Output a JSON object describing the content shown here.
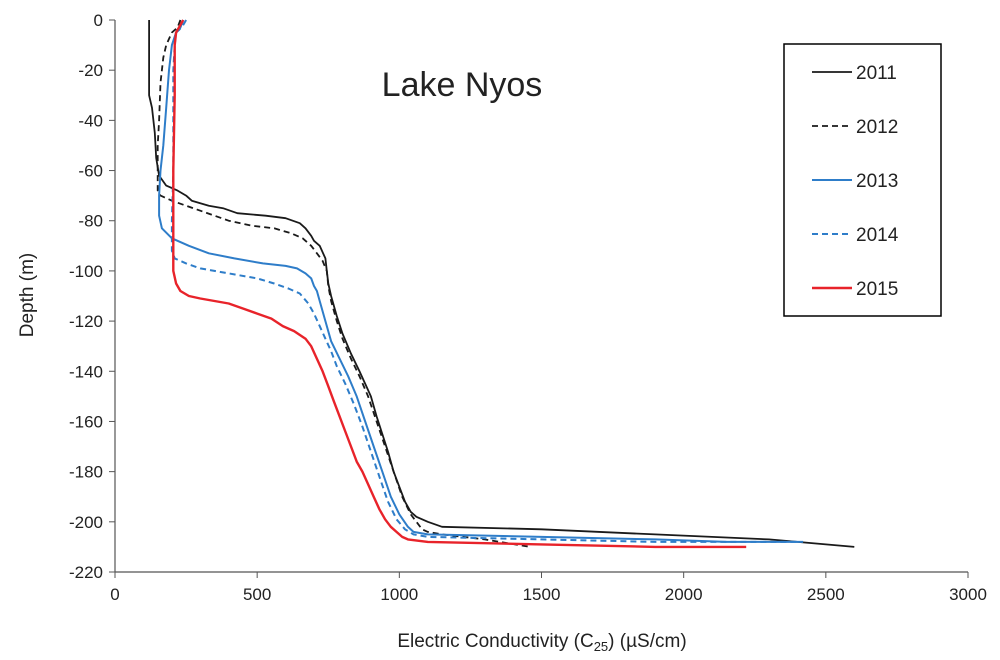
{
  "chart_data": {
    "type": "line",
    "title": "Lake Nyos",
    "xlabel_pre": "Electric Conductivity (C",
    "xlabel_sub": "25",
    "xlabel_post": ") (µS/cm)",
    "ylabel": "Depth (m)",
    "xlim": [
      0,
      3000
    ],
    "ylim": [
      -220,
      0
    ],
    "xticks": [
      0,
      500,
      1000,
      1500,
      2000,
      2500,
      3000
    ],
    "yticks": [
      0,
      -20,
      -40,
      -60,
      -80,
      -100,
      -120,
      -140,
      -160,
      -180,
      -200,
      -220
    ],
    "xtick_labels": [
      "0",
      "500",
      "1000",
      "1500",
      "2000",
      "2500",
      "3000"
    ],
    "ytick_labels": [
      "0",
      "-20",
      "-40",
      "-60",
      "-80",
      "-100",
      "-120",
      "-140",
      "-160",
      "-180",
      "-200",
      "-220"
    ],
    "grid": false,
    "legend": "top-right",
    "series": [
      {
        "name": "2011",
        "color": "#1a1a1a",
        "dash": "solid",
        "width": 1.8,
        "points": [
          [
            120,
            0
          ],
          [
            120,
            -30
          ],
          [
            130,
            -35
          ],
          [
            140,
            -45
          ],
          [
            145,
            -55
          ],
          [
            155,
            -62
          ],
          [
            180,
            -66
          ],
          [
            220,
            -68
          ],
          [
            250,
            -70
          ],
          [
            270,
            -72
          ],
          [
            330,
            -74
          ],
          [
            380,
            -75
          ],
          [
            430,
            -77
          ],
          [
            530,
            -78
          ],
          [
            600,
            -79
          ],
          [
            650,
            -81
          ],
          [
            670,
            -83
          ],
          [
            690,
            -86
          ],
          [
            700,
            -88
          ],
          [
            720,
            -90
          ],
          [
            740,
            -95
          ],
          [
            745,
            -100
          ],
          [
            750,
            -105
          ],
          [
            760,
            -110
          ],
          [
            780,
            -118
          ],
          [
            800,
            -125
          ],
          [
            830,
            -133
          ],
          [
            860,
            -140
          ],
          [
            880,
            -145
          ],
          [
            900,
            -150
          ],
          [
            920,
            -158
          ],
          [
            940,
            -165
          ],
          [
            960,
            -172
          ],
          [
            980,
            -180
          ],
          [
            1000,
            -186
          ],
          [
            1020,
            -192
          ],
          [
            1040,
            -196
          ],
          [
            1060,
            -198
          ],
          [
            1080,
            -199
          ],
          [
            1100,
            -200
          ],
          [
            1150,
            -202
          ],
          [
            1500,
            -203
          ],
          [
            1900,
            -205
          ],
          [
            2300,
            -207
          ],
          [
            2600,
            -210
          ]
        ]
      },
      {
        "name": "2012",
        "color": "#1a1a1a",
        "dash": "6,4",
        "width": 1.8,
        "points": [
          [
            230,
            0
          ],
          [
            220,
            -3
          ],
          [
            200,
            -5
          ],
          [
            180,
            -10
          ],
          [
            170,
            -15
          ],
          [
            160,
            -25
          ],
          [
            155,
            -40
          ],
          [
            150,
            -50
          ],
          [
            150,
            -62
          ],
          [
            150,
            -68
          ],
          [
            160,
            -70
          ],
          [
            200,
            -72
          ],
          [
            250,
            -74
          ],
          [
            300,
            -76
          ],
          [
            350,
            -78
          ],
          [
            400,
            -80
          ],
          [
            480,
            -82
          ],
          [
            560,
            -83
          ],
          [
            620,
            -85
          ],
          [
            660,
            -87
          ],
          [
            690,
            -90
          ],
          [
            710,
            -93
          ],
          [
            730,
            -96
          ],
          [
            745,
            -100
          ],
          [
            750,
            -106
          ],
          [
            760,
            -112
          ],
          [
            780,
            -120
          ],
          [
            800,
            -127
          ],
          [
            830,
            -135
          ],
          [
            860,
            -142
          ],
          [
            890,
            -150
          ],
          [
            920,
            -160
          ],
          [
            950,
            -170
          ],
          [
            980,
            -180
          ],
          [
            1010,
            -190
          ],
          [
            1040,
            -197
          ],
          [
            1060,
            -200
          ],
          [
            1080,
            -203
          ],
          [
            1100,
            -204
          ],
          [
            1150,
            -205
          ],
          [
            1300,
            -207
          ],
          [
            1460,
            -210
          ]
        ]
      },
      {
        "name": "2013",
        "color": "#2e7dc9",
        "dash": "solid",
        "width": 2.0,
        "points": [
          [
            240,
            0
          ],
          [
            230,
            -3
          ],
          [
            215,
            -5
          ],
          [
            200,
            -10
          ],
          [
            190,
            -20
          ],
          [
            180,
            -35
          ],
          [
            170,
            -50
          ],
          [
            160,
            -60
          ],
          [
            155,
            -70
          ],
          [
            155,
            -78
          ],
          [
            165,
            -83
          ],
          [
            200,
            -87
          ],
          [
            260,
            -90
          ],
          [
            330,
            -93
          ],
          [
            420,
            -95
          ],
          [
            520,
            -97
          ],
          [
            600,
            -98
          ],
          [
            640,
            -99
          ],
          [
            670,
            -101
          ],
          [
            690,
            -103
          ],
          [
            700,
            -106
          ],
          [
            710,
            -108
          ],
          [
            720,
            -112
          ],
          [
            740,
            -120
          ],
          [
            760,
            -128
          ],
          [
            790,
            -135
          ],
          [
            820,
            -142
          ],
          [
            850,
            -150
          ],
          [
            880,
            -160
          ],
          [
            910,
            -170
          ],
          [
            940,
            -180
          ],
          [
            970,
            -190
          ],
          [
            1000,
            -197
          ],
          [
            1030,
            -202
          ],
          [
            1050,
            -204
          ],
          [
            1100,
            -205
          ],
          [
            1500,
            -206
          ],
          [
            1900,
            -207
          ],
          [
            2150,
            -208
          ],
          [
            2420,
            -208
          ]
        ]
      },
      {
        "name": "2014",
        "color": "#2e7dc9",
        "dash": "6,4",
        "width": 2.0,
        "points": [
          [
            250,
            0
          ],
          [
            240,
            -2
          ],
          [
            225,
            -4
          ],
          [
            215,
            -5
          ],
          [
            210,
            -10
          ],
          [
            205,
            -20
          ],
          [
            205,
            -40
          ],
          [
            205,
            -60
          ],
          [
            200,
            -80
          ],
          [
            200,
            -92
          ],
          [
            210,
            -95
          ],
          [
            250,
            -97
          ],
          [
            300,
            -99
          ],
          [
            400,
            -101
          ],
          [
            500,
            -103
          ],
          [
            560,
            -105
          ],
          [
            610,
            -107
          ],
          [
            650,
            -109
          ],
          [
            680,
            -113
          ],
          [
            700,
            -117
          ],
          [
            720,
            -122
          ],
          [
            740,
            -127
          ],
          [
            760,
            -132
          ],
          [
            780,
            -138
          ],
          [
            810,
            -145
          ],
          [
            840,
            -153
          ],
          [
            870,
            -162
          ],
          [
            900,
            -172
          ],
          [
            930,
            -182
          ],
          [
            960,
            -192
          ],
          [
            990,
            -199
          ],
          [
            1020,
            -203
          ],
          [
            1050,
            -205
          ],
          [
            1100,
            -206
          ],
          [
            1500,
            -207
          ],
          [
            1900,
            -208
          ],
          [
            2200,
            -208
          ],
          [
            2400,
            -208
          ]
        ]
      },
      {
        "name": "2015",
        "color": "#e8232a",
        "dash": "solid",
        "width": 2.4,
        "points": [
          [
            240,
            0
          ],
          [
            230,
            -2
          ],
          [
            215,
            -5
          ],
          [
            210,
            -10
          ],
          [
            210,
            -30
          ],
          [
            205,
            -60
          ],
          [
            205,
            -80
          ],
          [
            205,
            -100
          ],
          [
            215,
            -105
          ],
          [
            230,
            -108
          ],
          [
            260,
            -110
          ],
          [
            300,
            -111
          ],
          [
            350,
            -112
          ],
          [
            400,
            -113
          ],
          [
            450,
            -115
          ],
          [
            500,
            -117
          ],
          [
            550,
            -119
          ],
          [
            590,
            -122
          ],
          [
            630,
            -124
          ],
          [
            670,
            -127
          ],
          [
            690,
            -130
          ],
          [
            710,
            -135
          ],
          [
            730,
            -140
          ],
          [
            750,
            -146
          ],
          [
            770,
            -152
          ],
          [
            790,
            -158
          ],
          [
            810,
            -164
          ],
          [
            830,
            -170
          ],
          [
            850,
            -176
          ],
          [
            870,
            -180
          ],
          [
            890,
            -185
          ],
          [
            910,
            -190
          ],
          [
            930,
            -195
          ],
          [
            950,
            -199
          ],
          [
            970,
            -202
          ],
          [
            990,
            -204
          ],
          [
            1010,
            -206
          ],
          [
            1030,
            -207
          ],
          [
            1100,
            -208
          ],
          [
            1500,
            -209
          ],
          [
            1900,
            -210
          ],
          [
            2220,
            -210
          ]
        ]
      }
    ]
  }
}
